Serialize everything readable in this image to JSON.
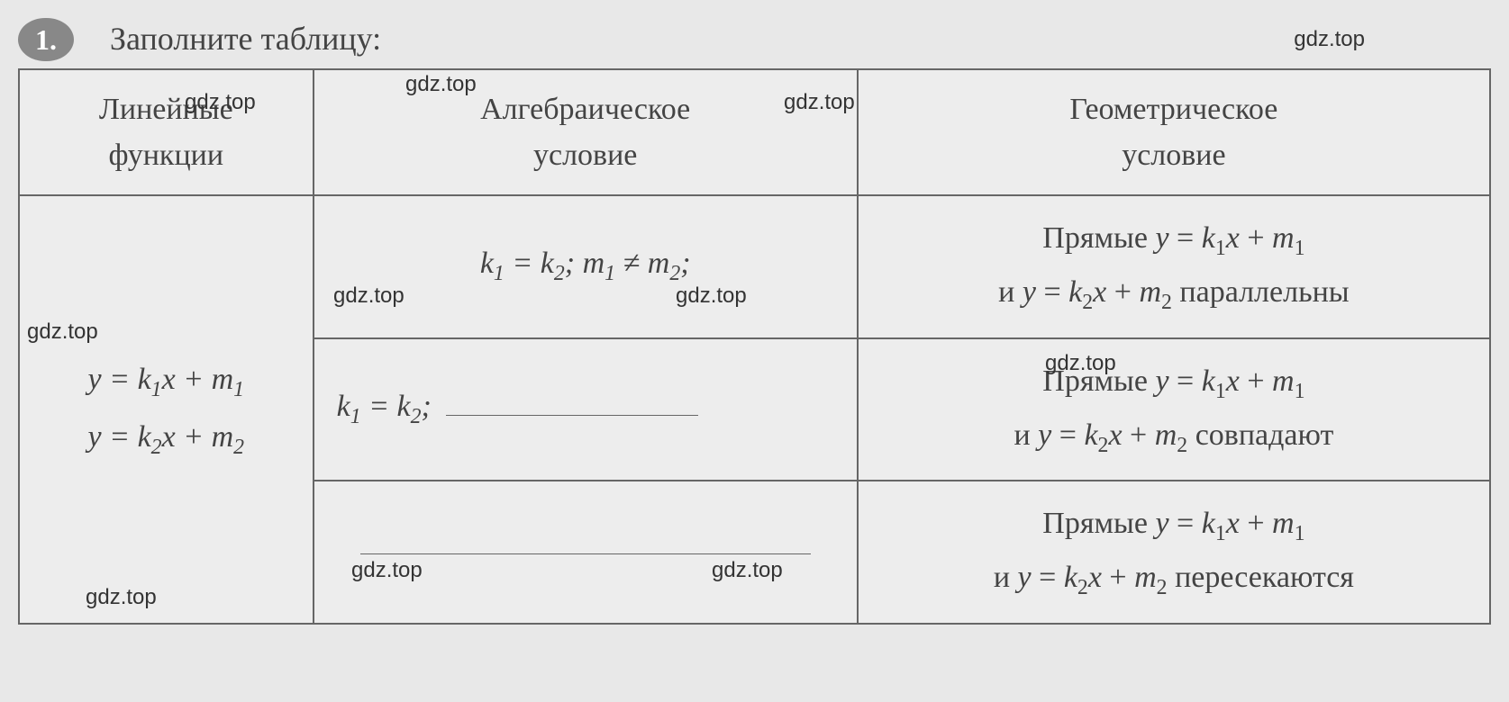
{
  "exercise_number": "1.",
  "title": "Заполните таблицу:",
  "watermark_text": "gdz.top",
  "table": {
    "headers": {
      "col1_line1": "Линейные",
      "col1_line2": "функции",
      "col2_line1": "Алгебраическое",
      "col2_line2": "условие",
      "col3_line1": "Геометрическое",
      "col3_line2": "условие"
    },
    "functions_cell": {
      "line1": "y = k₁x + m₁",
      "line2": "y = k₂x + m₂"
    },
    "row1": {
      "algebraic": "k₁ = k₂; m₁ ≠ m₂;",
      "geometric_line1": "Прямые y = k₁x + m₁",
      "geometric_line2": "и y = k₂x + m₂ параллельны"
    },
    "row2": {
      "algebraic_prefix": "k₁ = k₂;",
      "geometric_line1": "Прямые y = k₁x + m₁",
      "geometric_line2": "и y = k₂x + m₂ совпадают"
    },
    "row3": {
      "geometric_line1": "Прямые y = k₁x + m₁",
      "geometric_line2": "и y = k₂x + m₂ пересекаются"
    }
  },
  "colors": {
    "background": "#e8e8e8",
    "text": "#444444",
    "border": "#666666",
    "badge_bg": "#888888",
    "badge_text": "#ffffff"
  },
  "typography": {
    "body_font": "Times New Roman",
    "title_fontsize": 36,
    "cell_fontsize": 34,
    "watermark_fontsize": 24,
    "watermark_font": "Arial"
  }
}
